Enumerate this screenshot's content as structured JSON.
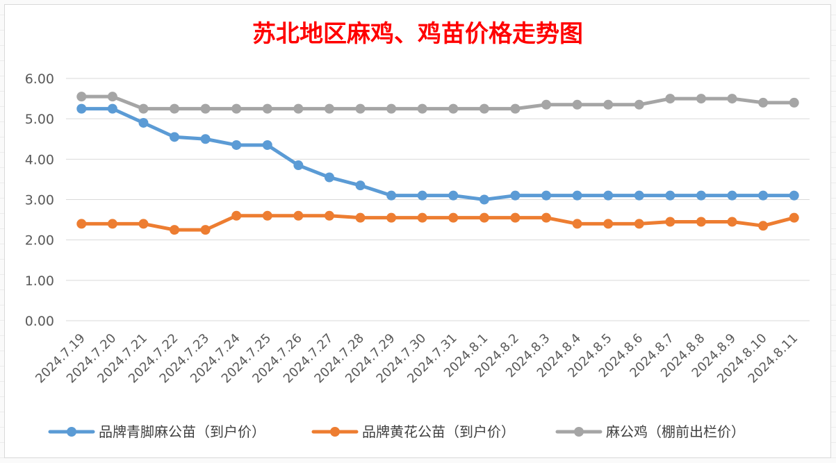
{
  "chart_data": {
    "type": "line",
    "title": "苏北地区麻鸡、鸡苗价格走势图",
    "xlabel": "",
    "ylabel": "",
    "ylim": [
      0,
      6
    ],
    "y_ticks": [
      "0.00",
      "1.00",
      "2.00",
      "3.00",
      "4.00",
      "5.00",
      "6.00"
    ],
    "grid": "horizontal",
    "legend_position": "bottom",
    "categories": [
      "2024.7.19",
      "2024.7.20",
      "2024.7.21",
      "2024.7.22",
      "2024.7.23",
      "2024.7.24",
      "2024.7.25",
      "2024.7.26",
      "2024.7.27",
      "2024.7.28",
      "2024.7.29",
      "2024.7.30",
      "2024.7.31",
      "2024.8.1",
      "2024.8.2",
      "2024.8.3",
      "2024.8.4",
      "2024.8.5",
      "2024.8.6",
      "2024.8.7",
      "2024.8.8",
      "2024.8.9",
      "2024.8.10",
      "2024.8.11"
    ],
    "series": [
      {
        "name": "品牌青脚麻公苗（到户价）",
        "color": "#5b9bd5",
        "values": [
          5.25,
          5.25,
          4.9,
          4.55,
          4.5,
          4.35,
          4.35,
          3.85,
          3.55,
          3.35,
          3.1,
          3.1,
          3.1,
          3.0,
          3.1,
          3.1,
          3.1,
          3.1,
          3.1,
          3.1,
          3.1,
          3.1,
          3.1,
          3.1
        ]
      },
      {
        "name": "品牌黄花公苗（到户价）",
        "color": "#ed7d31",
        "values": [
          2.4,
          2.4,
          2.4,
          2.25,
          2.25,
          2.6,
          2.6,
          2.6,
          2.6,
          2.55,
          2.55,
          2.55,
          2.55,
          2.55,
          2.55,
          2.55,
          2.4,
          2.4,
          2.4,
          2.45,
          2.45,
          2.45,
          2.35,
          2.55
        ]
      },
      {
        "name": "麻公鸡（棚前出栏价）",
        "color": "#a5a5a5",
        "values": [
          5.55,
          5.55,
          5.25,
          5.25,
          5.25,
          5.25,
          5.25,
          5.25,
          5.25,
          5.25,
          5.25,
          5.25,
          5.25,
          5.25,
          5.25,
          5.35,
          5.35,
          5.35,
          5.35,
          5.5,
          5.5,
          5.5,
          5.4,
          5.4
        ]
      }
    ]
  }
}
